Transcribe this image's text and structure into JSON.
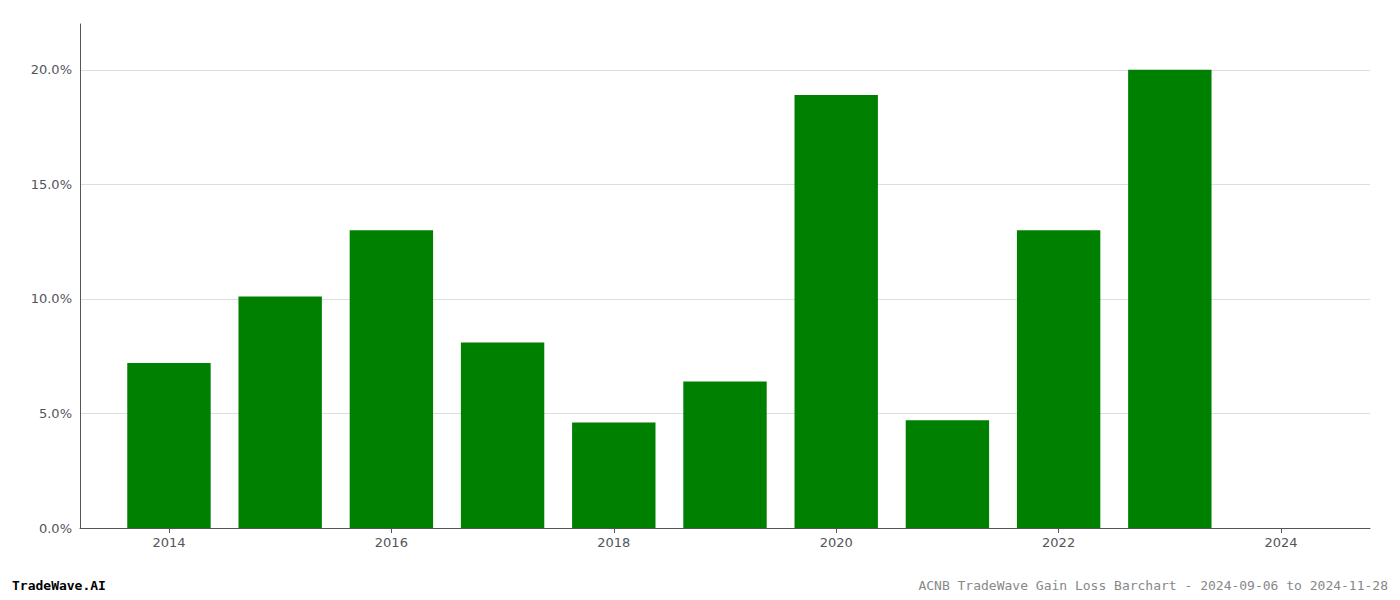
{
  "chart_data": {
    "type": "bar",
    "x": [
      2014,
      2015,
      2016,
      2017,
      2018,
      2019,
      2020,
      2021,
      2022,
      2023
    ],
    "values": [
      0.072,
      0.101,
      0.13,
      0.081,
      0.046,
      0.064,
      0.189,
      0.047,
      0.13,
      0.2
    ],
    "color": "#008000",
    "xlim": [
      2013.2,
      2024.8
    ],
    "xticks": [
      2014,
      2016,
      2018,
      2020,
      2022,
      2024
    ],
    "ylim": [
      0,
      0.22
    ],
    "yticks": [
      {
        "value": 0,
        "label": "0.0%"
      },
      {
        "value": 0.05,
        "label": "5.0%"
      },
      {
        "value": 0.1,
        "label": "10.0%"
      },
      {
        "value": 0.15,
        "label": "15.0%"
      },
      {
        "value": 0.2,
        "label": "20.0%"
      }
    ],
    "grid": true,
    "annotations": [
      "TradeWave.AI",
      "ACNB TradeWave Gain Loss Barchart - 2024-09-06 to 2024-11-28"
    ]
  }
}
